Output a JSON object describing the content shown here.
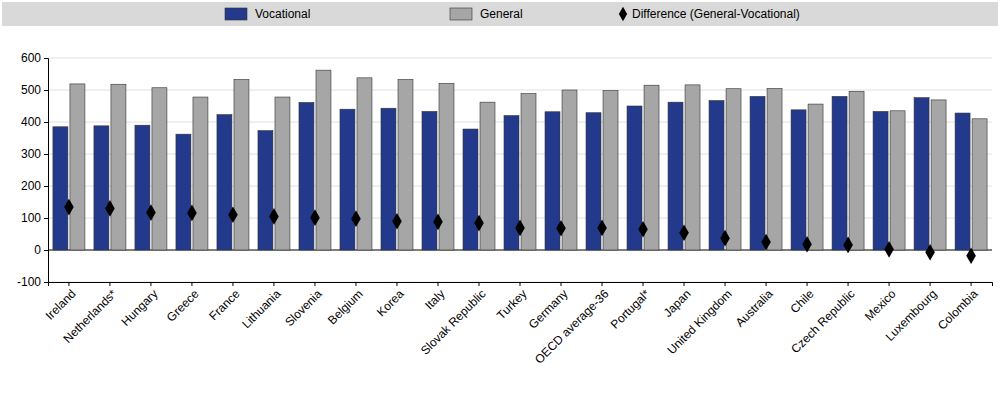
{
  "chart_data": {
    "type": "bar",
    "categories": [
      "Ireland",
      "Netherlands*",
      "Hungary",
      "Greece",
      "France",
      "Lithuania",
      "Slovenia",
      "Belgium",
      "Korea",
      "Italy",
      "Slovak Republic",
      "Turkey",
      "Germany",
      "OECD average-36",
      "Portugal*",
      "Japan",
      "United Kingdom",
      "Australia",
      "Chile",
      "Czech Republic",
      "Mexico",
      "Luxembourg",
      "Colombia"
    ],
    "series": [
      {
        "name": "Vocational",
        "type": "bar",
        "color": "#233a8c",
        "values": [
          385,
          388,
          390,
          362,
          423,
          373,
          461,
          440,
          443,
          433,
          378,
          420,
          432,
          429,
          450,
          462,
          467,
          480,
          438,
          480,
          433,
          476,
          428
        ]
      },
      {
        "name": "General",
        "type": "bar",
        "color": "#a6a6a6",
        "values": [
          519,
          518,
          507,
          478,
          533,
          478,
          562,
          538,
          533,
          521,
          462,
          489,
          500,
          498,
          515,
          516,
          504,
          505,
          456,
          496,
          435,
          469,
          410
        ]
      },
      {
        "name": "Difference (General-Vocational)",
        "type": "scatter",
        "marker": "diamond",
        "color": "#000000",
        "values": [
          134,
          130,
          117,
          116,
          110,
          105,
          101,
          98,
          90,
          88,
          84,
          69,
          68,
          69,
          65,
          54,
          37,
          25,
          18,
          16,
          2,
          -7,
          -18
        ]
      }
    ],
    "ylim": [
      -100,
      600
    ],
    "yticks": [
      -100,
      0,
      100,
      200,
      300,
      400,
      500,
      600
    ],
    "grid": true,
    "legend": "top"
  }
}
